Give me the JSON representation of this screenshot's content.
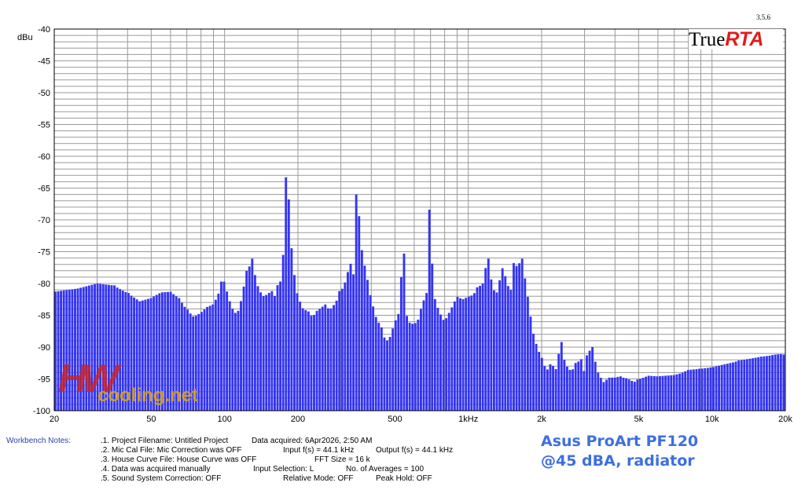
{
  "version": "3.5.6",
  "logo": {
    "part1": "True",
    "part2": "RTA"
  },
  "watermark": {
    "hw": "HW",
    "site": "cooling.net"
  },
  "notes": {
    "label": "Workbench Notes:",
    "n1": ".1. Project Filename: Untitled Project",
    "n2": ".2. Mic Cal File: Mic Correction was OFF",
    "n3": ".3. House Curve File: House Curve was OFF",
    "n4": ".4. Data was acquired manually",
    "n5": ".5. Sound System Correction: OFF",
    "acquired": "Data acquired: 6Apr2026, 2:50 AM",
    "input_fs": "Input f(s) = 44.1 kHz",
    "output_fs": "Output f(s) = 44.1 kHz",
    "fft": "FFT Size = 16 k",
    "input_sel": "Input Selection: L",
    "averages": "No. of Averages = 100",
    "relative": "Relative Mode:  OFF",
    "peak": "Peak Hold: OFF"
  },
  "caption": {
    "line1": "Asus ProArt PF120",
    "line2": "@45 dBA, radiator"
  },
  "chart_data": {
    "type": "bar",
    "ylabel": "dBu",
    "xscale": "log",
    "xlim": [
      20,
      20000
    ],
    "ylim": [
      -100,
      -40
    ],
    "grid": true,
    "bar_color": "#3434f2",
    "xticks": [
      {
        "v": 20,
        "label": "20"
      },
      {
        "v": 50,
        "label": "50"
      },
      {
        "v": 100,
        "label": "100"
      },
      {
        "v": 200,
        "label": "200"
      },
      {
        "v": 500,
        "label": "500"
      },
      {
        "v": 1000,
        "label": "1kHz"
      },
      {
        "v": 2000,
        "label": "2k"
      },
      {
        "v": 5000,
        "label": "5k"
      },
      {
        "v": 10000,
        "label": "10k"
      },
      {
        "v": 20000,
        "label": "20k"
      }
    ],
    "yticks": [
      {
        "v": -40,
        "label": "-40"
      },
      {
        "v": -45,
        "label": "-45"
      },
      {
        "v": -50,
        "label": "-50"
      },
      {
        "v": -55,
        "label": "-55"
      },
      {
        "v": -60,
        "label": "-60"
      },
      {
        "v": -65,
        "label": "-65"
      },
      {
        "v": -70,
        "label": "-70"
      },
      {
        "v": -75,
        "label": "-75"
      },
      {
        "v": -80,
        "label": "-80"
      },
      {
        "v": -85,
        "label": "-85"
      },
      {
        "v": -90,
        "label": "-90"
      },
      {
        "v": -95,
        "label": "-95"
      },
      {
        "v": -100,
        "label": "-100"
      }
    ],
    "spectrum": [
      [
        20,
        -81.3
      ],
      [
        25,
        -80.8
      ],
      [
        30,
        -80.0
      ],
      [
        35,
        -80.3
      ],
      [
        40,
        -81.5
      ],
      [
        45,
        -82.8
      ],
      [
        50,
        -82.3
      ],
      [
        55,
        -81.4
      ],
      [
        60,
        -81.3
      ],
      [
        65,
        -82.3
      ],
      [
        70,
        -84.1
      ],
      [
        75,
        -85.3
      ],
      [
        80,
        -84.6
      ],
      [
        85,
        -83.7
      ],
      [
        90,
        -83.3
      ],
      [
        95,
        -81.6
      ],
      [
        97,
        -79.7
      ],
      [
        100,
        -79.7
      ],
      [
        105,
        -82.8
      ],
      [
        110,
        -84.7
      ],
      [
        115,
        -84.3
      ],
      [
        120,
        -80.6
      ],
      [
        125,
        -78.0
      ],
      [
        130,
        -76.1
      ],
      [
        135,
        -79.6
      ],
      [
        140,
        -81.4
      ],
      [
        145,
        -82.0
      ],
      [
        150,
        -81.8
      ],
      [
        155,
        -81.2
      ],
      [
        160,
        -82.4
      ],
      [
        165,
        -80.3
      ],
      [
        170,
        -79.7
      ],
      [
        175,
        -75.5
      ],
      [
        180,
        -63.3
      ],
      [
        185,
        -67.8
      ],
      [
        190,
        -76.5
      ],
      [
        200,
        -82.0
      ],
      [
        210,
        -83.9
      ],
      [
        220,
        -84.4
      ],
      [
        230,
        -85.3
      ],
      [
        240,
        -84.3
      ],
      [
        250,
        -83.8
      ],
      [
        260,
        -83.3
      ],
      [
        270,
        -84.2
      ],
      [
        280,
        -83.5
      ],
      [
        290,
        -82.7
      ],
      [
        300,
        -81.2
      ],
      [
        310,
        -80.4
      ],
      [
        320,
        -78.4
      ],
      [
        330,
        -76.9
      ],
      [
        340,
        -78.8
      ],
      [
        350,
        -66.0
      ],
      [
        360,
        -70.7
      ],
      [
        370,
        -76.6
      ],
      [
        380,
        -77.5
      ],
      [
        390,
        -80.3
      ],
      [
        400,
        -82.4
      ],
      [
        420,
        -85.4
      ],
      [
        440,
        -86.9
      ],
      [
        460,
        -89.2
      ],
      [
        480,
        -88.4
      ],
      [
        500,
        -86.1
      ],
      [
        520,
        -84.8
      ],
      [
        540,
        -75.3
      ],
      [
        560,
        -85.1
      ],
      [
        580,
        -86.4
      ],
      [
        600,
        -86.3
      ],
      [
        620,
        -86.1
      ],
      [
        650,
        -83.1
      ],
      [
        680,
        -81.5
      ],
      [
        700,
        -68.4
      ],
      [
        720,
        -81.6
      ],
      [
        760,
        -84.4
      ],
      [
        800,
        -86.0
      ],
      [
        850,
        -84.1
      ],
      [
        900,
        -82.1
      ],
      [
        950,
        -82.5
      ],
      [
        1000,
        -82.1
      ],
      [
        1050,
        -81.8
      ],
      [
        1100,
        -80.6
      ],
      [
        1150,
        -80.0
      ],
      [
        1200,
        -76.1
      ],
      [
        1250,
        -79.7
      ],
      [
        1300,
        -82.1
      ],
      [
        1350,
        -79.5
      ],
      [
        1400,
        -77.6
      ],
      [
        1450,
        -80.4
      ],
      [
        1500,
        -81.0
      ],
      [
        1550,
        -76.8
      ],
      [
        1600,
        -77.5
      ],
      [
        1650,
        -76.1
      ],
      [
        1700,
        -79.2
      ],
      [
        1750,
        -82.1
      ],
      [
        1800,
        -85.2
      ],
      [
        1850,
        -87.9
      ],
      [
        1900,
        -89.5
      ],
      [
        2000,
        -91.7
      ],
      [
        2100,
        -93.7
      ],
      [
        2200,
        -92.7
      ],
      [
        2300,
        -93.5
      ],
      [
        2400,
        -89.2
      ],
      [
        2500,
        -92.5
      ],
      [
        2600,
        -93.6
      ],
      [
        2700,
        -93.5
      ],
      [
        2800,
        -92.5
      ],
      [
        2900,
        -91.9
      ],
      [
        3000,
        -93.9
      ],
      [
        3100,
        -91.3
      ],
      [
        3200,
        -90.0
      ],
      [
        3300,
        -92.3
      ],
      [
        3400,
        -94.0
      ],
      [
        3600,
        -95.5
      ],
      [
        3800,
        -94.8
      ],
      [
        4000,
        -94.8
      ],
      [
        4200,
        -94.6
      ],
      [
        4400,
        -94.9
      ],
      [
        4600,
        -95.1
      ],
      [
        4800,
        -95.5
      ],
      [
        5000,
        -95.1
      ],
      [
        5500,
        -94.5
      ],
      [
        6000,
        -94.6
      ],
      [
        6500,
        -94.5
      ],
      [
        7000,
        -94.4
      ],
      [
        7500,
        -94.1
      ],
      [
        8000,
        -93.6
      ],
      [
        9000,
        -93.4
      ],
      [
        10000,
        -93.2
      ],
      [
        11000,
        -92.8
      ],
      [
        12000,
        -92.5
      ],
      [
        13000,
        -92.1
      ],
      [
        14000,
        -91.9
      ],
      [
        15000,
        -91.7
      ],
      [
        16000,
        -91.5
      ],
      [
        17000,
        -91.4
      ],
      [
        18000,
        -91.2
      ],
      [
        19000,
        -91.1
      ],
      [
        20000,
        -91.2
      ]
    ]
  }
}
